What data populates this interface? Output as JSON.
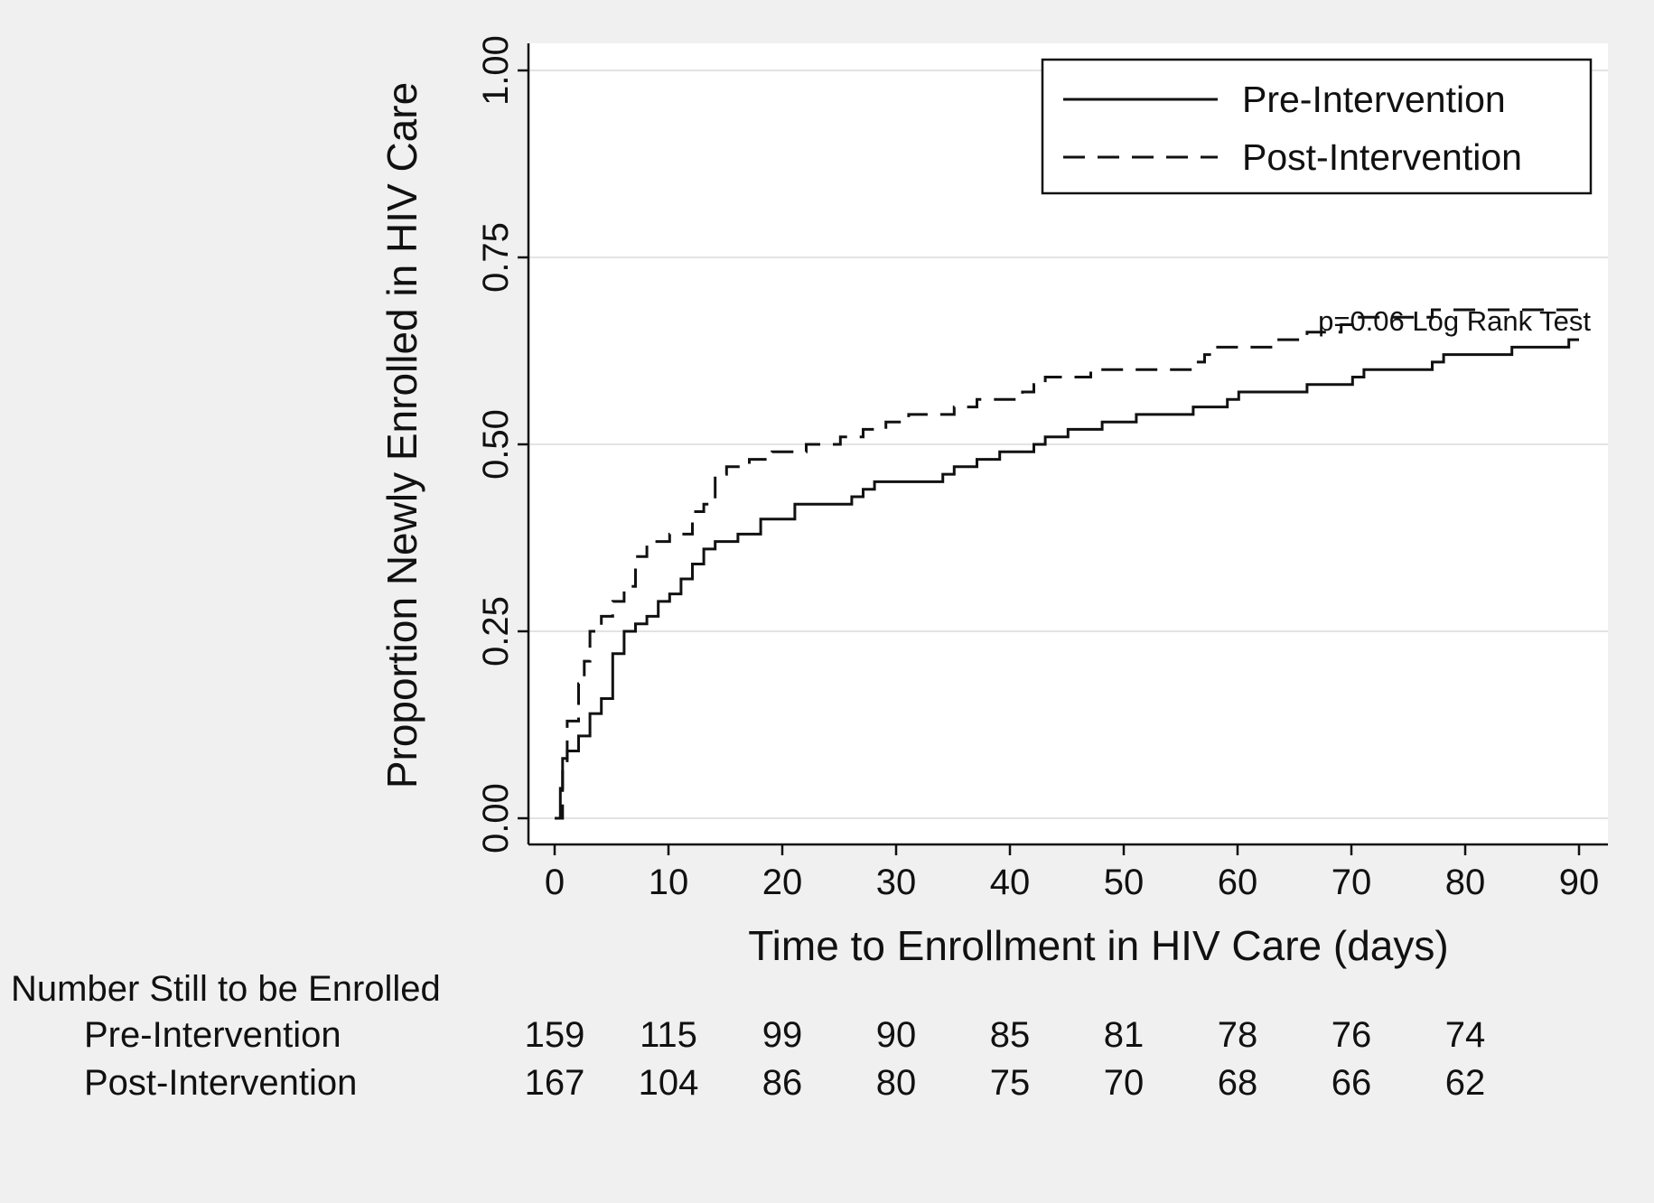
{
  "chart_data": {
    "type": "line",
    "subtype": "kaplan-meier-failure",
    "title": "",
    "xlabel": "Time to Enrollment in HIV Care (days)",
    "ylabel": "Proportion Newly Enrolled in HIV Care",
    "xlim": [
      0,
      90
    ],
    "ylim": [
      0,
      1
    ],
    "xticks": [
      0,
      10,
      20,
      30,
      40,
      50,
      60,
      70,
      80,
      90
    ],
    "yticks": [
      0,
      0.25,
      0.5,
      0.75,
      1
    ],
    "ytick_labels": [
      "0.00",
      "0.25",
      "0.50",
      "0.75",
      "1.00"
    ],
    "grid": "horizontal",
    "legend_position": "top-right",
    "annotation": "p=0.06 Log Rank Test",
    "colors": {
      "background": "#f0f0f0",
      "plot_background": "#ffffff",
      "grid": "#e3e3e3",
      "line": "#111111"
    },
    "series": [
      {
        "name": "Pre-Intervention",
        "style": "solid",
        "x": [
          0,
          0.5,
          0.5,
          0.7,
          0.7,
          1.1,
          1.1,
          2.1,
          2.1,
          3.1,
          3.1,
          4.1,
          4.1,
          5.1,
          5.1,
          6.1,
          6.1,
          7.1,
          7.1,
          8.1,
          8.1,
          9.1,
          9.1,
          10.1,
          10.1,
          11.1,
          11.1,
          12.1,
          12.1,
          13.1,
          13.1,
          14.1,
          14.1,
          16.1,
          16.1,
          18.1,
          18.1,
          21.1,
          21.1,
          26.1,
          26.1,
          27.1,
          27.1,
          28.1,
          28.1,
          34.1,
          34.1,
          35.1,
          35.1,
          37.1,
          37.1,
          39.1,
          39.1,
          42.1,
          42.1,
          43.1,
          43.1,
          45.1,
          45.1,
          48.1,
          48.1,
          51.1,
          51.1,
          56.1,
          56.1,
          59.1,
          59.1,
          60.1,
          60.1,
          66.1,
          66.1,
          70.1,
          70.1,
          71.1,
          71.1,
          77.1,
          77.1,
          78.1,
          78.1,
          84.1,
          84.1,
          89.1,
          89.1,
          90
        ],
        "y": [
          0,
          0,
          0.04,
          0.04,
          0.08,
          0.08,
          0.09,
          0.09,
          0.11,
          0.11,
          0.14,
          0.14,
          0.16,
          0.16,
          0.22,
          0.22,
          0.25,
          0.25,
          0.26,
          0.26,
          0.27,
          0.27,
          0.29,
          0.29,
          0.3,
          0.3,
          0.32,
          0.32,
          0.34,
          0.34,
          0.36,
          0.36,
          0.37,
          0.37,
          0.38,
          0.38,
          0.4,
          0.4,
          0.42,
          0.42,
          0.43,
          0.43,
          0.44,
          0.44,
          0.45,
          0.45,
          0.46,
          0.46,
          0.47,
          0.47,
          0.48,
          0.48,
          0.49,
          0.49,
          0.5,
          0.5,
          0.51,
          0.51,
          0.52,
          0.52,
          0.53,
          0.53,
          0.54,
          0.54,
          0.55,
          0.55,
          0.56,
          0.56,
          0.57,
          0.57,
          0.58,
          0.58,
          0.59,
          0.59,
          0.6,
          0.6,
          0.61,
          0.61,
          0.62,
          0.62,
          0.63,
          0.63,
          0.64,
          0.64
        ]
      },
      {
        "name": "Post-Intervention",
        "style": "dashed",
        "x": [
          0,
          0.7,
          0.7,
          1.1,
          1.1,
          2.1,
          2.1,
          2.6,
          2.6,
          3.1,
          3.1,
          4.1,
          4.1,
          5.1,
          5.1,
          6.1,
          6.1,
          7.1,
          7.1,
          8.1,
          8.1,
          10.1,
          10.1,
          12.1,
          12.1,
          13.1,
          13.1,
          14.1,
          14.1,
          15.1,
          15.1,
          17.1,
          17.1,
          19.1,
          19.1,
          22.1,
          22.1,
          25.1,
          25.1,
          27.1,
          27.1,
          29.1,
          29.1,
          31.1,
          31.1,
          35.1,
          35.1,
          37.1,
          37.1,
          41.1,
          41.1,
          42.1,
          42.1,
          43.1,
          43.1,
          47.1,
          47.1,
          56.1,
          56.1,
          57.1,
          57.1,
          58.1,
          58.1,
          63.1,
          63.1,
          66.1,
          66.1,
          69.1,
          69.1,
          70.1,
          70.1,
          77.1,
          77.1,
          90
        ],
        "y": [
          0,
          0,
          0.07,
          0.07,
          0.13,
          0.13,
          0.18,
          0.18,
          0.21,
          0.21,
          0.25,
          0.25,
          0.27,
          0.27,
          0.29,
          0.29,
          0.31,
          0.31,
          0.35,
          0.35,
          0.37,
          0.37,
          0.38,
          0.38,
          0.41,
          0.41,
          0.42,
          0.42,
          0.46,
          0.46,
          0.47,
          0.47,
          0.48,
          0.48,
          0.49,
          0.49,
          0.5,
          0.5,
          0.51,
          0.51,
          0.52,
          0.52,
          0.53,
          0.53,
          0.54,
          0.54,
          0.55,
          0.55,
          0.56,
          0.56,
          0.57,
          0.57,
          0.58,
          0.58,
          0.59,
          0.59,
          0.6,
          0.6,
          0.61,
          0.61,
          0.62,
          0.62,
          0.63,
          0.63,
          0.64,
          0.64,
          0.65,
          0.65,
          0.66,
          0.66,
          0.67,
          0.67,
          0.68,
          0.68
        ]
      }
    ],
    "risk_table": {
      "title": "Number Still to be Enrolled",
      "times": [
        0,
        10,
        20,
        30,
        40,
        50,
        60,
        70,
        80
      ],
      "rows": [
        {
          "label": "Pre-Intervention",
          "values": [
            159,
            115,
            99,
            90,
            85,
            81,
            78,
            76,
            74
          ]
        },
        {
          "label": "Post-Intervention",
          "values": [
            167,
            104,
            86,
            80,
            75,
            70,
            68,
            66,
            62
          ]
        }
      ]
    }
  }
}
